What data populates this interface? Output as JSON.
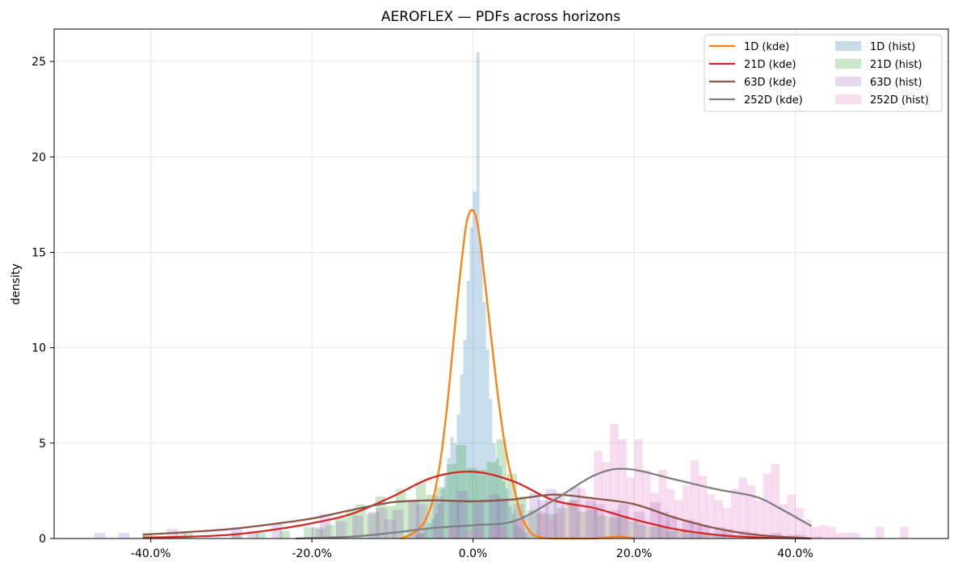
{
  "chart_data": {
    "type": "histogram+kde",
    "title": "AEROFLEX — PDFs across horizons",
    "xlabel": "",
    "ylabel": "density",
    "xlim": [
      -0.52,
      0.59
    ],
    "ylim": [
      0,
      26.7
    ],
    "x_ticks": [
      -0.4,
      -0.2,
      0.0,
      0.2,
      0.4
    ],
    "x_tick_labels": [
      "-40.0%",
      "-20.0%",
      "0.0%",
      "20.0%",
      "40.0%"
    ],
    "y_ticks": [
      0,
      5,
      10,
      15,
      20,
      25
    ],
    "y_tick_labels": [
      "0",
      "5",
      "10",
      "15",
      "20",
      "25"
    ],
    "grid": true,
    "legend_position": "top-right",
    "legend_columns": 2,
    "kde_series": [
      {
        "name": "1D (kde)",
        "color": "#ff7f0e",
        "x": [
          -0.09,
          -0.08,
          -0.07,
          -0.06,
          -0.05,
          -0.04,
          -0.03,
          -0.02,
          -0.01,
          -0.005,
          0.0,
          0.005,
          0.01,
          0.02,
          0.03,
          0.04,
          0.05,
          0.06,
          0.07,
          0.08,
          0.1,
          0.15,
          0.18,
          0.2
        ],
        "y": [
          0.0,
          0.15,
          0.4,
          0.9,
          2.0,
          4.2,
          7.8,
          12.2,
          16.0,
          17.0,
          17.2,
          16.6,
          15.2,
          11.5,
          7.8,
          4.8,
          2.8,
          1.2,
          0.4,
          0.1,
          0.0,
          0.0,
          0.1,
          0.0
        ]
      },
      {
        "name": "21D (kde)",
        "color": "#d62728",
        "x": [
          -0.41,
          -0.35,
          -0.3,
          -0.25,
          -0.2,
          -0.15,
          -0.1,
          -0.05,
          0.0,
          0.05,
          0.1,
          0.15,
          0.2,
          0.25,
          0.3,
          0.35,
          0.42
        ],
        "y": [
          0.05,
          0.1,
          0.2,
          0.45,
          0.8,
          1.3,
          2.2,
          3.2,
          3.5,
          3.0,
          2.0,
          1.6,
          1.0,
          0.5,
          0.2,
          0.06,
          0.0
        ]
      },
      {
        "name": "63D (kde)",
        "color": "#8c564b",
        "x": [
          -0.41,
          -0.35,
          -0.3,
          -0.25,
          -0.2,
          -0.15,
          -0.1,
          -0.05,
          0.0,
          0.05,
          0.1,
          0.15,
          0.2,
          0.25,
          0.3,
          0.35,
          0.42
        ],
        "y": [
          0.2,
          0.35,
          0.5,
          0.75,
          1.05,
          1.5,
          1.9,
          2.0,
          1.95,
          2.05,
          2.3,
          2.1,
          1.8,
          1.1,
          0.55,
          0.2,
          0.0
        ]
      },
      {
        "name": "252D (kde)",
        "color": "#7f7f7f",
        "x": [
          -0.22,
          -0.15,
          -0.1,
          -0.05,
          0.0,
          0.05,
          0.1,
          0.15,
          0.19,
          0.25,
          0.3,
          0.35,
          0.38,
          0.42
        ],
        "y": [
          0.0,
          0.1,
          0.3,
          0.55,
          0.7,
          0.9,
          2.0,
          3.3,
          3.65,
          3.1,
          2.6,
          2.2,
          1.6,
          0.65
        ]
      }
    ],
    "hist_series": [
      {
        "name": "1D (hist)",
        "color": "#1f77b4",
        "alpha": 0.25,
        "bin_width": 0.004,
        "x": [
          -0.072,
          -0.068,
          -0.064,
          -0.06,
          -0.056,
          -0.052,
          -0.048,
          -0.044,
          -0.04,
          -0.036,
          -0.032,
          -0.028,
          -0.024,
          -0.02,
          -0.016,
          -0.012,
          -0.008,
          -0.004,
          0.0,
          0.004,
          0.008,
          0.012,
          0.016,
          0.02,
          0.024,
          0.028,
          0.032,
          0.036,
          0.04,
          0.044,
          0.048,
          0.052,
          0.056,
          0.06,
          0.064
        ],
        "values": [
          0.2,
          0.3,
          0.3,
          0.5,
          0.8,
          1.0,
          1.3,
          1.8,
          2.6,
          3.4,
          4.2,
          5.3,
          5.0,
          6.5,
          8.6,
          10.4,
          13.5,
          16.3,
          18.2,
          25.5,
          15.3,
          12.4,
          9.9,
          7.3,
          5.0,
          4.2,
          3.8,
          3.0,
          2.6,
          1.7,
          1.3,
          0.7,
          0.6,
          0.5,
          0.3
        ]
      },
      {
        "name": "21D (hist)",
        "color": "#2ca02c",
        "alpha": 0.25,
        "bin_width": 0.0125,
        "x": [
          -0.41,
          -0.36,
          -0.3,
          -0.27,
          -0.24,
          -0.21,
          -0.196,
          -0.184,
          -0.171,
          -0.158,
          -0.146,
          -0.133,
          -0.121,
          -0.108,
          -0.096,
          -0.083,
          -0.071,
          -0.058,
          -0.046,
          -0.033,
          -0.021,
          -0.008,
          0.004,
          0.017,
          0.029,
          0.042,
          0.054,
          0.067,
          0.079,
          0.092,
          0.104,
          0.117,
          0.129,
          0.142,
          0.154,
          0.167,
          0.179,
          0.192,
          0.204,
          0.217,
          0.229,
          0.242,
          0.254,
          0.267,
          0.279,
          0.292,
          0.304,
          0.317
        ],
        "values": [
          0.3,
          0.3,
          0.3,
          0.3,
          0.4,
          0.6,
          0.5,
          0.7,
          1.1,
          1.5,
          1.8,
          1.3,
          2.2,
          1.7,
          2.6,
          2.0,
          2.9,
          2.3,
          2.7,
          3.9,
          4.9,
          3.7,
          3.6,
          4.0,
          5.2,
          3.4,
          2.2,
          1.5,
          1.3,
          1.3,
          1.6,
          2.0,
          1.4,
          1.5,
          1.2,
          1.1,
          1.2,
          0.9,
          0.7,
          0.6,
          0.6,
          0.4,
          0.4,
          0.3,
          0.3,
          0.2,
          0.2,
          0.1
        ]
      },
      {
        "name": "63D (hist)",
        "color": "#9467bd",
        "alpha": 0.25,
        "bin_width": 0.0135,
        "x": [
          -0.47,
          -0.44,
          -0.38,
          -0.37,
          -0.3,
          -0.28,
          -0.25,
          -0.2,
          -0.19,
          -0.17,
          -0.15,
          -0.13,
          -0.12,
          -0.11,
          -0.1,
          -0.08,
          -0.07,
          -0.05,
          -0.03,
          -0.02,
          0.0,
          0.02,
          0.03,
          0.05,
          0.07,
          0.08,
          0.09,
          0.1,
          0.12,
          0.14,
          0.15,
          0.17,
          0.18,
          0.2,
          0.22,
          0.23,
          0.24,
          0.26,
          0.27,
          0.28,
          0.3,
          0.31,
          0.33,
          0.34,
          0.37,
          0.39,
          0.4,
          0.42
        ],
        "values": [
          0.3,
          0.3,
          0.5,
          0.3,
          0.6,
          0.4,
          0.8,
          0.6,
          1.3,
          0.9,
          1.2,
          1.4,
          1.6,
          1.0,
          1.5,
          2.0,
          1.8,
          2.2,
          2.0,
          2.5,
          1.9,
          2.3,
          2.1,
          1.8,
          2.4,
          2.0,
          2.6,
          2.4,
          2.7,
          2.0,
          1.8,
          1.5,
          1.8,
          1.4,
          1.9,
          1.4,
          1.2,
          1.0,
          0.9,
          0.7,
          0.6,
          0.5,
          0.4,
          0.3,
          0.3,
          0.2,
          0.2,
          0.1
        ]
      },
      {
        "name": "252D (hist)",
        "color": "#e377c2",
        "alpha": 0.25,
        "bin_width": 0.0105,
        "x": [
          -0.07,
          -0.05,
          -0.03,
          -0.01,
          0.0,
          0.02,
          0.03,
          0.05,
          0.06,
          0.08,
          0.09,
          0.1,
          0.11,
          0.12,
          0.13,
          0.14,
          0.15,
          0.16,
          0.17,
          0.18,
          0.19,
          0.2,
          0.21,
          0.22,
          0.23,
          0.24,
          0.25,
          0.26,
          0.27,
          0.28,
          0.29,
          0.3,
          0.31,
          0.32,
          0.33,
          0.34,
          0.35,
          0.36,
          0.37,
          0.38,
          0.39,
          0.4,
          0.41,
          0.42,
          0.43,
          0.44,
          0.45,
          0.46,
          0.47,
          0.5,
          0.53
        ],
        "values": [
          0.2,
          0.3,
          0.5,
          0.4,
          0.6,
          0.5,
          0.6,
          1.0,
          1.2,
          1.4,
          1.0,
          1.3,
          1.8,
          2.0,
          2.6,
          2.2,
          4.6,
          4.0,
          6.0,
          5.2,
          3.2,
          5.2,
          3.6,
          2.4,
          3.6,
          2.6,
          2.0,
          2.8,
          4.1,
          3.3,
          2.3,
          2.0,
          1.6,
          2.6,
          3.2,
          2.8,
          2.0,
          3.4,
          3.9,
          1.8,
          2.3,
          1.6,
          1.0,
          0.6,
          0.7,
          0.6,
          0.3,
          0.3,
          0.3,
          0.6,
          0.6
        ]
      }
    ],
    "legend": {
      "col1": [
        "1D (kde)",
        "21D (kde)",
        "63D (kde)",
        "252D (kde)"
      ],
      "col2": [
        "1D (hist)",
        "21D (hist)",
        "63D (hist)",
        "252D (hist)"
      ]
    }
  }
}
